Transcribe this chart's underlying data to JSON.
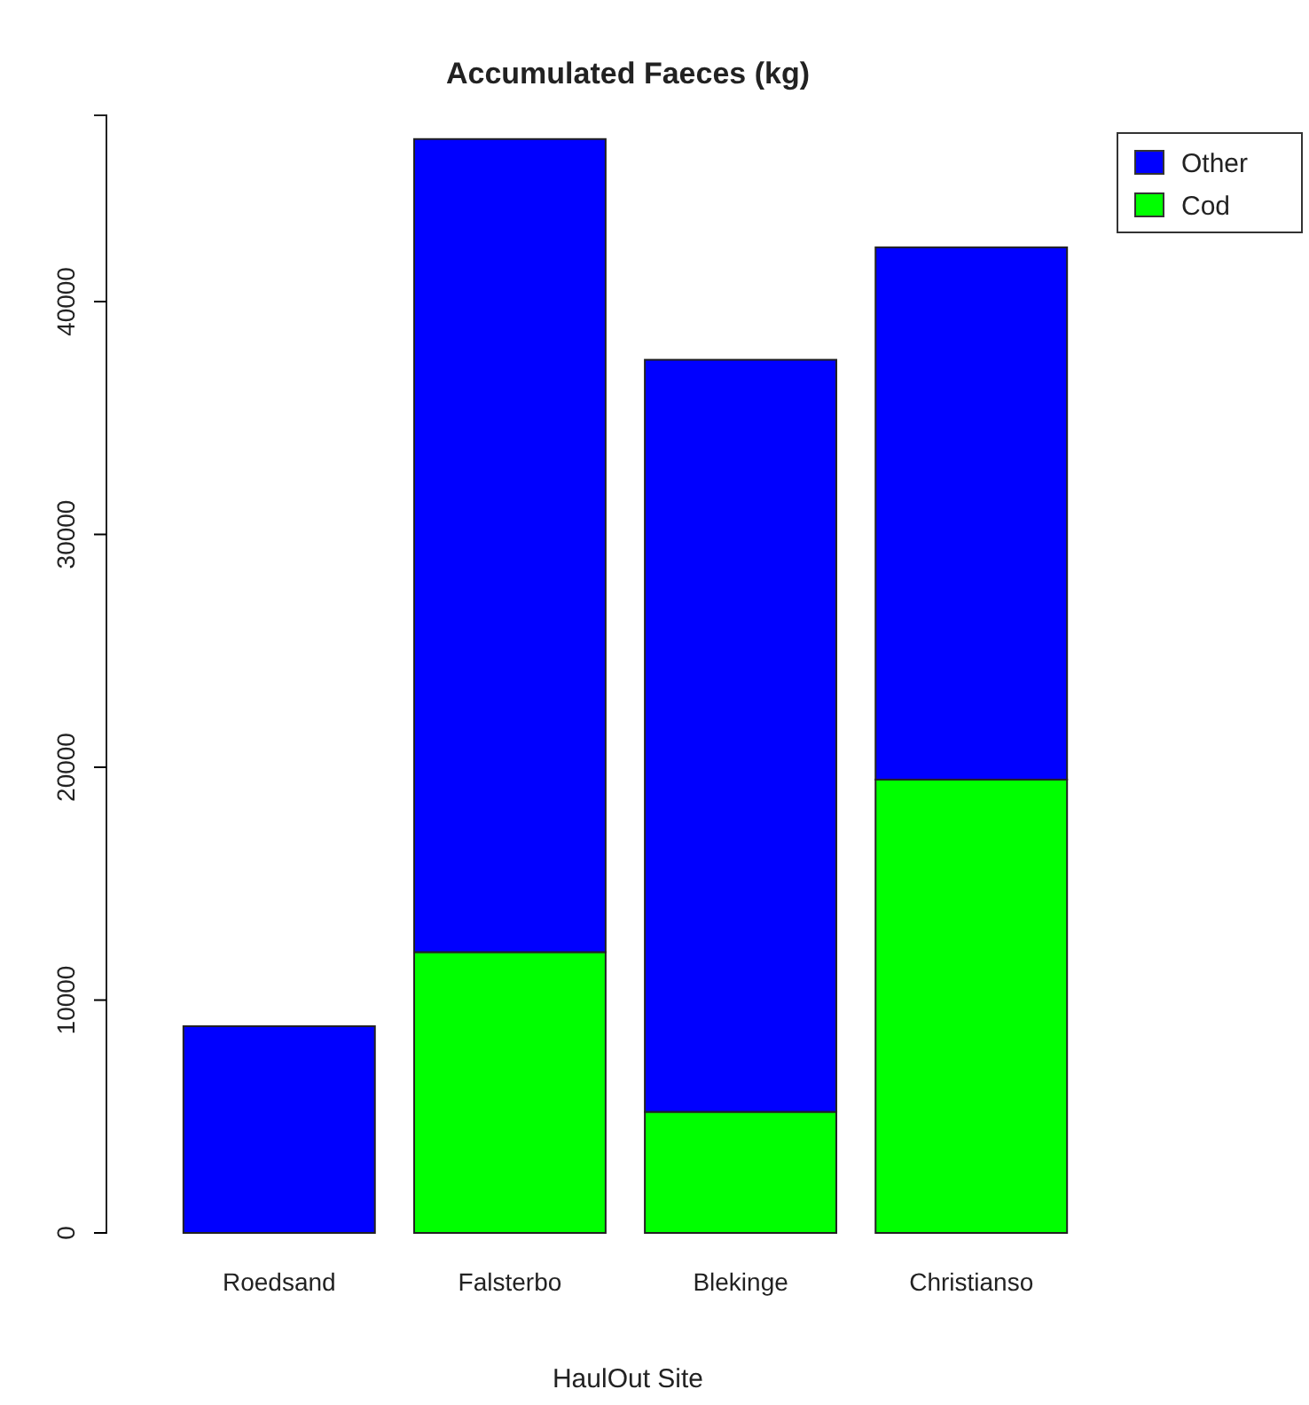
{
  "chart_data": {
    "type": "bar",
    "title": "Accumulated Faeces (kg)",
    "xlabel": "HaulOut Site",
    "categories": [
      "Roedsand",
      "Falsterbo",
      "Blekinge",
      "Christianso"
    ],
    "stacked": true,
    "series": [
      {
        "name": "Cod",
        "color": "#00ff00",
        "values": [
          null,
          12060,
          5200,
          19470
        ]
      },
      {
        "name": "Other",
        "color": "#0000ff",
        "values": [
          8880,
          34920,
          32300,
          22860
        ]
      }
    ],
    "ylim": [
      0,
      48000
    ],
    "yticks": [
      0,
      10000,
      20000,
      30000,
      40000
    ],
    "legend": "top right",
    "grid": false
  }
}
